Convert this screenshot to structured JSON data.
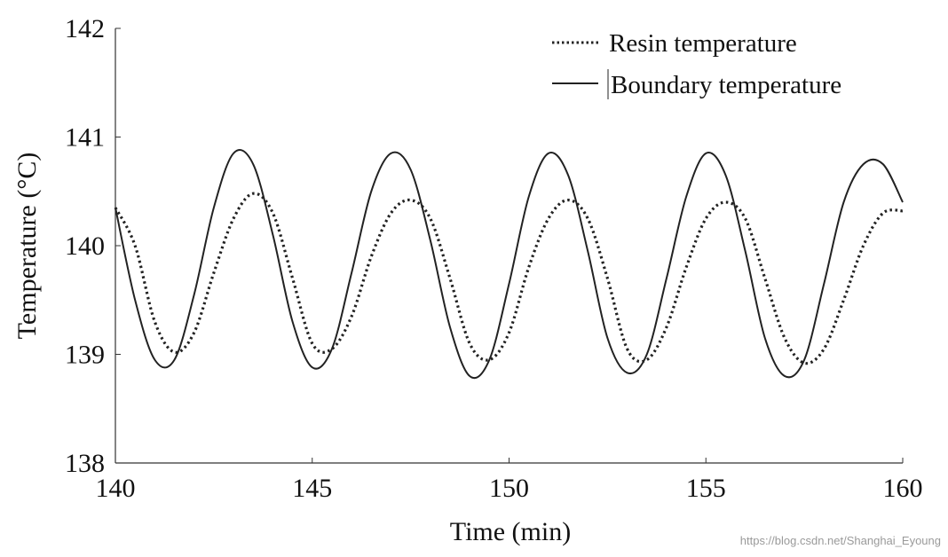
{
  "chart_data": {
    "type": "line",
    "title": "",
    "xlabel": "Time (min)",
    "ylabel": "Temperature (°C)",
    "xlim": [
      140,
      160
    ],
    "ylim": [
      138,
      142
    ],
    "xticks": [
      140,
      145,
      150,
      155,
      160
    ],
    "yticks": [
      138,
      139,
      140,
      141,
      142
    ],
    "grid": false,
    "legend_position": "top-right",
    "series": [
      {
        "name": "Resin temperature",
        "style": "dotted",
        "color": "#222222",
        "x": [
          140.0,
          140.5,
          141.0,
          141.5,
          142.0,
          142.5,
          143.0,
          143.5,
          144.0,
          144.5,
          145.0,
          145.5,
          146.0,
          146.5,
          147.0,
          147.5,
          148.0,
          148.5,
          149.0,
          149.5,
          150.0,
          150.5,
          151.0,
          151.5,
          152.0,
          152.5,
          153.0,
          153.5,
          154.0,
          154.5,
          155.0,
          155.5,
          156.0,
          156.5,
          157.0,
          157.5,
          158.0,
          158.5,
          159.0,
          159.5,
          160.0
        ],
        "y": [
          140.35,
          140.0,
          139.3,
          139.02,
          139.2,
          139.75,
          140.25,
          140.48,
          140.3,
          139.7,
          139.1,
          139.05,
          139.35,
          139.9,
          140.3,
          140.42,
          140.25,
          139.7,
          139.1,
          138.95,
          139.2,
          139.8,
          140.25,
          140.42,
          140.25,
          139.7,
          139.05,
          138.95,
          139.25,
          139.8,
          140.25,
          140.4,
          140.25,
          139.7,
          139.15,
          138.92,
          139.05,
          139.5,
          140.0,
          140.3,
          140.32
        ]
      },
      {
        "name": "Boundary temperature",
        "style": "solid",
        "color": "#222222",
        "x": [
          140.0,
          140.5,
          141.0,
          141.5,
          142.0,
          142.5,
          143.0,
          143.5,
          144.0,
          144.5,
          145.0,
          145.5,
          146.0,
          146.5,
          147.0,
          147.5,
          148.0,
          148.5,
          149.0,
          149.5,
          150.0,
          150.5,
          151.0,
          151.5,
          152.0,
          152.5,
          153.0,
          153.5,
          154.0,
          154.5,
          155.0,
          155.5,
          156.0,
          156.5,
          157.0,
          157.5,
          158.0,
          158.5,
          159.0,
          159.5,
          160.0
        ],
        "y": [
          140.35,
          139.5,
          138.95,
          138.95,
          139.55,
          140.35,
          140.85,
          140.75,
          140.1,
          139.3,
          138.88,
          139.05,
          139.75,
          140.5,
          140.85,
          140.7,
          140.05,
          139.25,
          138.8,
          138.95,
          139.65,
          140.45,
          140.85,
          140.65,
          139.95,
          139.15,
          138.83,
          139.0,
          139.7,
          140.45,
          140.85,
          140.65,
          139.95,
          139.15,
          138.8,
          138.95,
          139.65,
          140.4,
          140.75,
          140.75,
          140.4
        ]
      }
    ]
  },
  "watermark": "https://blog.csdn.net/Shanghai_Eyoung"
}
